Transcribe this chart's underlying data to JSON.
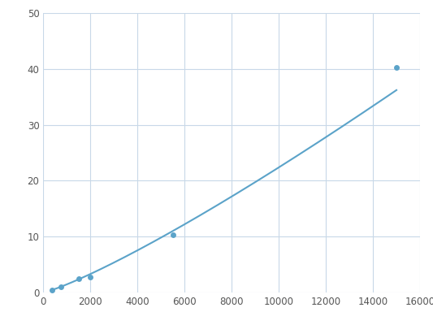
{
  "x": [
    375,
    750,
    1500,
    2000,
    5500,
    15000
  ],
  "y": [
    0.5,
    1.0,
    2.5,
    2.8,
    10.3,
    40.3
  ],
  "line_color": "#5ba3c9",
  "marker_color": "#5ba3c9",
  "marker_size": 5,
  "line_width": 1.5,
  "xlim": [
    0,
    16000
  ],
  "ylim": [
    0,
    50
  ],
  "xticks": [
    0,
    2000,
    4000,
    6000,
    8000,
    10000,
    12000,
    14000,
    16000
  ],
  "yticks": [
    0,
    10,
    20,
    30,
    40,
    50
  ],
  "grid_color": "#c8d8e8",
  "background_color": "#ffffff",
  "figsize": [
    5.33,
    4.0
  ],
  "dpi": 100
}
